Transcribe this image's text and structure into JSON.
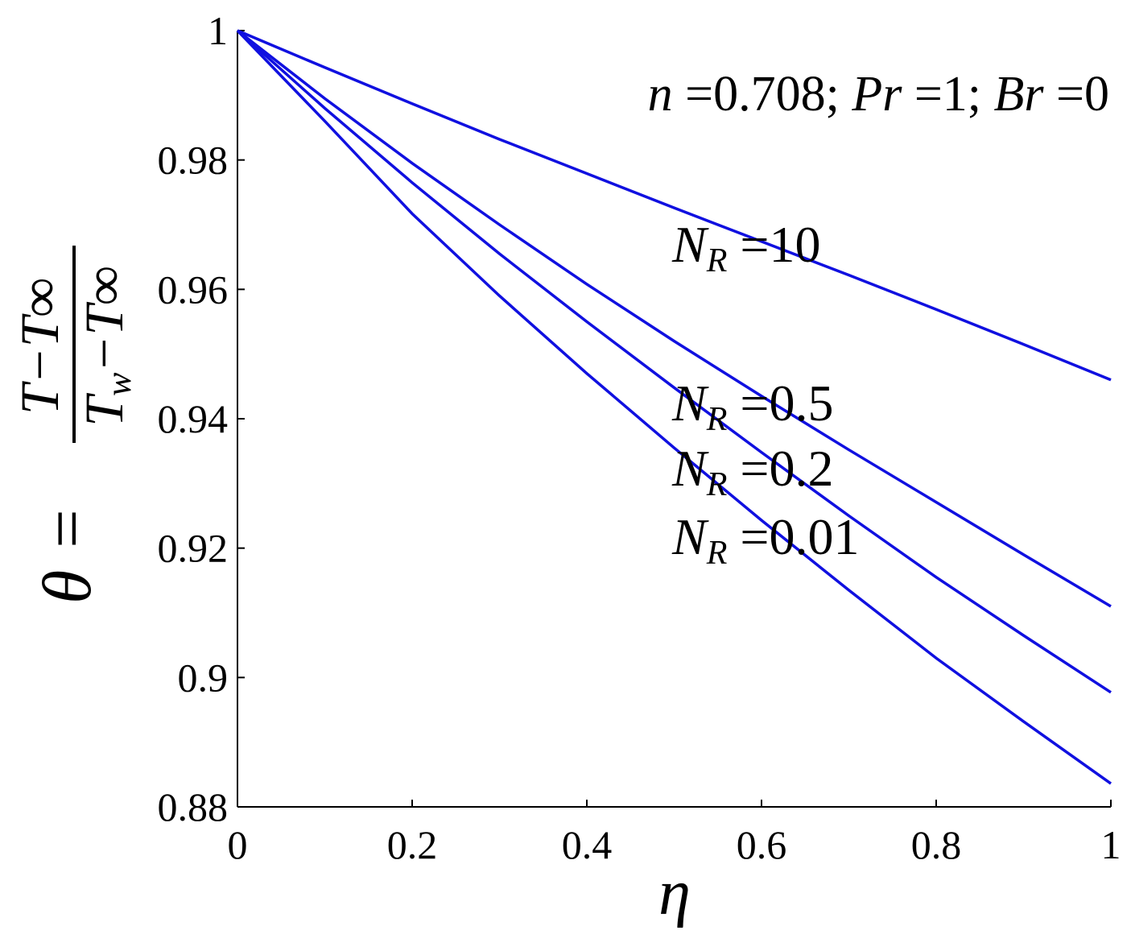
{
  "chart_data": {
    "type": "line",
    "xlabel": "η",
    "ylabel": {
      "lhs": "θ =",
      "numerator": "T−T∞",
      "denominator": [
        "T",
        "w",
        "−T∞"
      ]
    },
    "x": [
      0,
      0.1,
      0.2,
      0.3,
      0.4,
      0.5,
      0.6,
      0.7,
      0.8,
      0.9,
      1
    ],
    "series": [
      {
        "name": "N_R =10",
        "color": "#1010e0",
        "values": [
          1,
          0.9943,
          0.9887,
          0.9832,
          0.9779,
          0.9726,
          0.9674,
          0.9622,
          0.9569,
          0.9515,
          0.946
        ]
      },
      {
        "name": "N_R =0.5",
        "color": "#1010e0",
        "values": [
          1,
          0.9895,
          0.9795,
          0.97,
          0.9608,
          0.952,
          0.9435,
          0.9352,
          0.9271,
          0.919,
          0.911
        ]
      },
      {
        "name": "N_R =0.2",
        "color": "#1010e0",
        "values": [
          1,
          0.988,
          0.9765,
          0.9655,
          0.955,
          0.9448,
          0.9348,
          0.925,
          0.9155,
          0.9065,
          0.8977
        ]
      },
      {
        "name": "N_R =0.01",
        "color": "#1010e0",
        "values": [
          1,
          0.986,
          0.9717,
          0.959,
          0.947,
          0.9355,
          0.9243,
          0.9135,
          0.903,
          0.8932,
          0.8836
        ]
      }
    ],
    "annotations": [
      {
        "main": "n",
        "rest": " =0.708; ",
        "main2": "Pr",
        "rest2": " =1; ",
        "main3": "Br",
        "rest3": " =0"
      }
    ],
    "curve_labels": [
      {
        "main": "N",
        "sub": "R",
        "rest": " =10"
      },
      {
        "main": "N",
        "sub": "R",
        "rest": " =0.5"
      },
      {
        "main": "N",
        "sub": "R",
        "rest": " =0.2"
      },
      {
        "main": "N",
        "sub": "R",
        "rest": " =0.01"
      }
    ],
    "xlim": [
      0,
      1
    ],
    "ylim": [
      0.88,
      1
    ],
    "xticks": [
      0,
      0.2,
      0.4,
      0.6,
      0.8,
      1
    ],
    "yticks": [
      0.88,
      0.9,
      0.92,
      0.94,
      0.96,
      0.98,
      1
    ]
  }
}
